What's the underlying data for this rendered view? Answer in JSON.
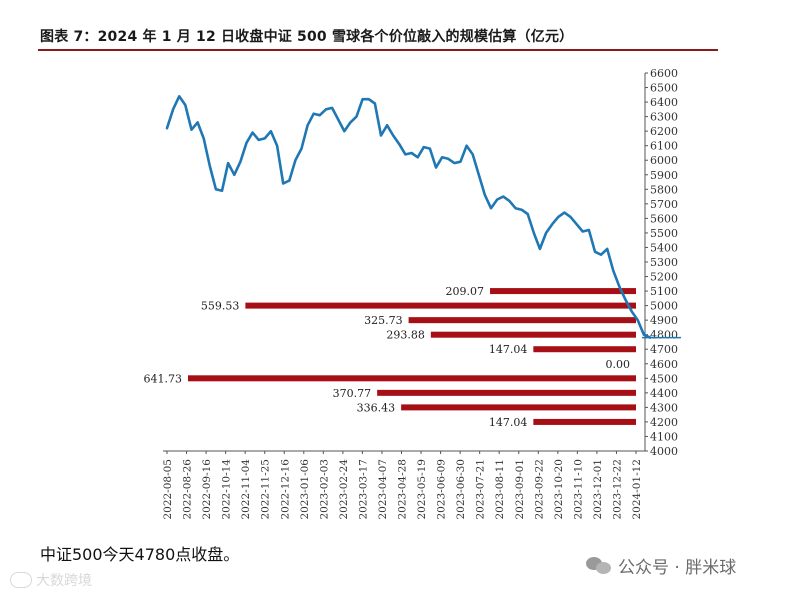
{
  "chart_data": {
    "type": "line",
    "title": "图表 7：2024 年 1 月 12 日收盘中证 500 雪球各个价位敲入的规模估算（亿元）",
    "xlabel": "",
    "ylabel": "",
    "ylim": [
      4000,
      6600
    ],
    "y_ticks": [
      4000,
      4100,
      4200,
      4300,
      4400,
      4500,
      4600,
      4700,
      4800,
      4900,
      5000,
      5100,
      5200,
      5300,
      5400,
      5500,
      5600,
      5700,
      5800,
      5900,
      6000,
      6100,
      6200,
      6300,
      6400,
      6500,
      6600
    ],
    "x_tick_labels": [
      "2022-08-05",
      "2022-08-26",
      "2022-09-16",
      "2022-10-14",
      "2022-11-04",
      "2022-11-25",
      "2022-12-16",
      "2023-01-06",
      "2023-02-03",
      "2023-02-24",
      "2023-03-17",
      "2023-04-07",
      "2023-04-28",
      "2023-05-19",
      "2023-06-09",
      "2023-06-30",
      "2023-07-21",
      "2023-08-11",
      "2023-09-01",
      "2023-09-22",
      "2023-10-20",
      "2023-11-10",
      "2023-12-01",
      "2023-12-22",
      "2024-01-12"
    ],
    "grid": false,
    "line_color": "#1f77b4",
    "bar_color": "#a50f15",
    "series": [
      {
        "values": [
          6220,
          6350,
          6440,
          6380,
          6210,
          6260,
          6150,
          5960,
          5800,
          5790,
          5980,
          5900,
          5990,
          6120,
          6190,
          6140,
          6150,
          6200,
          6100,
          5840,
          5860,
          6000,
          6080,
          6240,
          6320,
          6310,
          6350,
          6360,
          6280,
          6200,
          6260,
          6300,
          6420,
          6420,
          6390,
          6170,
          6240,
          6170,
          6110,
          6040,
          6050,
          6020,
          6090,
          6080,
          5950,
          6020,
          6010,
          5980,
          5990,
          6100,
          6040,
          5900,
          5760,
          5670,
          5730,
          5750,
          5720,
          5670,
          5660,
          5630,
          5500,
          5390,
          5500,
          5560,
          5610,
          5640,
          5610,
          5560,
          5510,
          5520,
          5370,
          5350,
          5390,
          5240,
          5130,
          5040,
          4960,
          4900,
          4800,
          4780
        ]
      }
    ],
    "horizontal_bars": [
      {
        "price": 5100,
        "value": 209.07,
        "label": "209.07"
      },
      {
        "price": 5000,
        "value": 559.53,
        "label": "559.53"
      },
      {
        "price": 4900,
        "value": 325.73,
        "label": "325.73"
      },
      {
        "price": 4800,
        "value": 293.88,
        "label": "293.88"
      },
      {
        "price": 4700,
        "value": 147.04,
        "label": "147.04"
      },
      {
        "price": 4600,
        "value": 0.0,
        "label": "0.00"
      },
      {
        "price": 4500,
        "value": 641.73,
        "label": "641.73"
      },
      {
        "price": 4400,
        "value": 370.77,
        "label": "370.77"
      },
      {
        "price": 4300,
        "value": 336.43,
        "label": "336.43"
      },
      {
        "price": 4200,
        "value": 147.04,
        "label": "147.04"
      }
    ],
    "reference_line": {
      "value": 4780,
      "color": "#1f77b4"
    }
  },
  "caption": "中证500今天4780点收盘。",
  "watermark": {
    "text": "公众号 · 胖米球",
    "icon": "wechat-icon"
  },
  "footer_mark": {
    "text": "大数跨境",
    "icon": "speech-bubble-icon"
  }
}
